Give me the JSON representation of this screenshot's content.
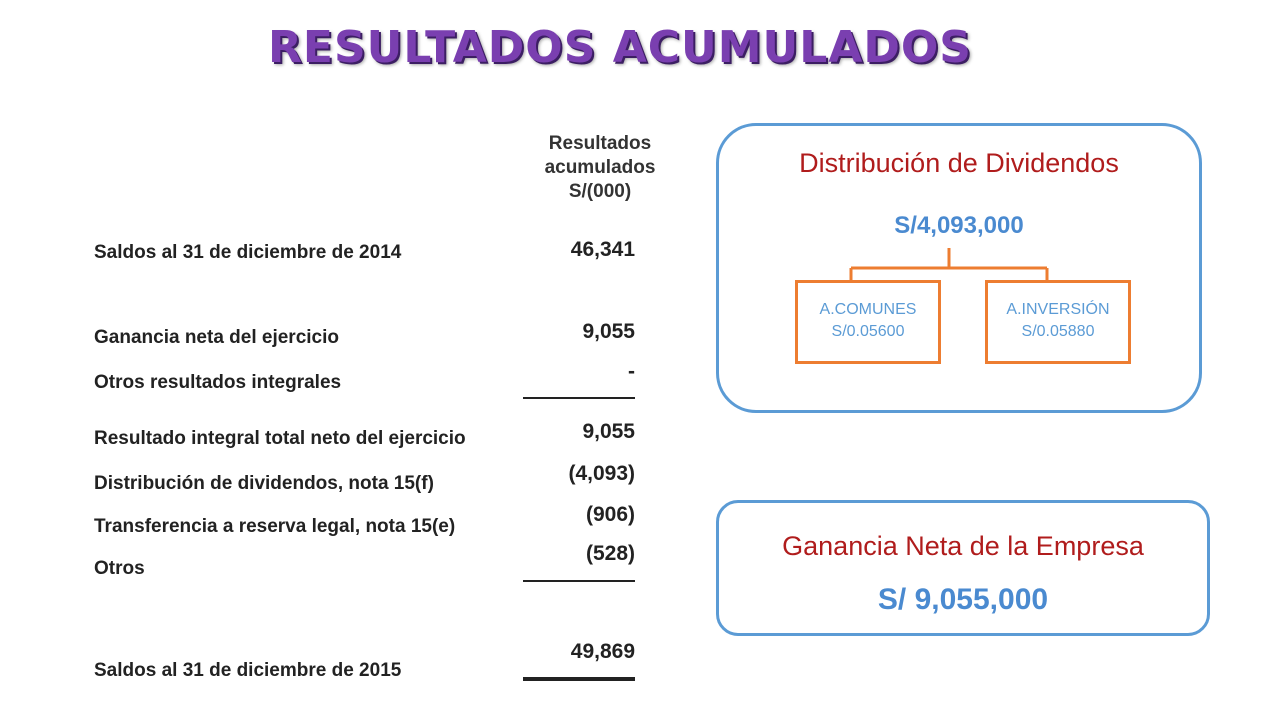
{
  "title": "RESULTADOS ACUMULADOS",
  "statement": {
    "column_header": [
      "Resultados",
      "acumulados",
      "S/(000)"
    ],
    "rows": [
      {
        "label": "Saldos al 31 de diciembre de 2014",
        "value": "46,341"
      },
      {
        "label": "Ganancia neta del ejercicio",
        "value": "9,055"
      },
      {
        "label": "Otros resultados integrales",
        "value": "-"
      },
      {
        "label": "Resultado integral total neto del ejercicio",
        "value": "9,055"
      },
      {
        "label": "Distribución de dividendos, nota 15(f)",
        "value": "(4,093)"
      },
      {
        "label": "Transferencia a reserva legal, nota 15(e)",
        "value": "(906)"
      },
      {
        "label": "Otros",
        "value": "(528)"
      },
      {
        "label": "Saldos al 31 de diciembre de 2015",
        "value": "49,869"
      }
    ]
  },
  "dividends_box": {
    "title": "Distribución de Dividendos",
    "total": "S/4,093,000",
    "shares": [
      {
        "name": "A.COMUNES",
        "amount": "S/0.05600"
      },
      {
        "name": "A.INVERSIÓN",
        "amount": "S/0.05880"
      }
    ]
  },
  "net_income_box": {
    "title": "Ganancia Neta de la Empresa",
    "amount": "S/ 9,055,000"
  },
  "colors": {
    "title": "#7a3fb0",
    "box_border": "#5b9bd5",
    "share_border": "#ed7d31",
    "box_title": "#b01c1c",
    "amount": "#4a8ad0"
  }
}
